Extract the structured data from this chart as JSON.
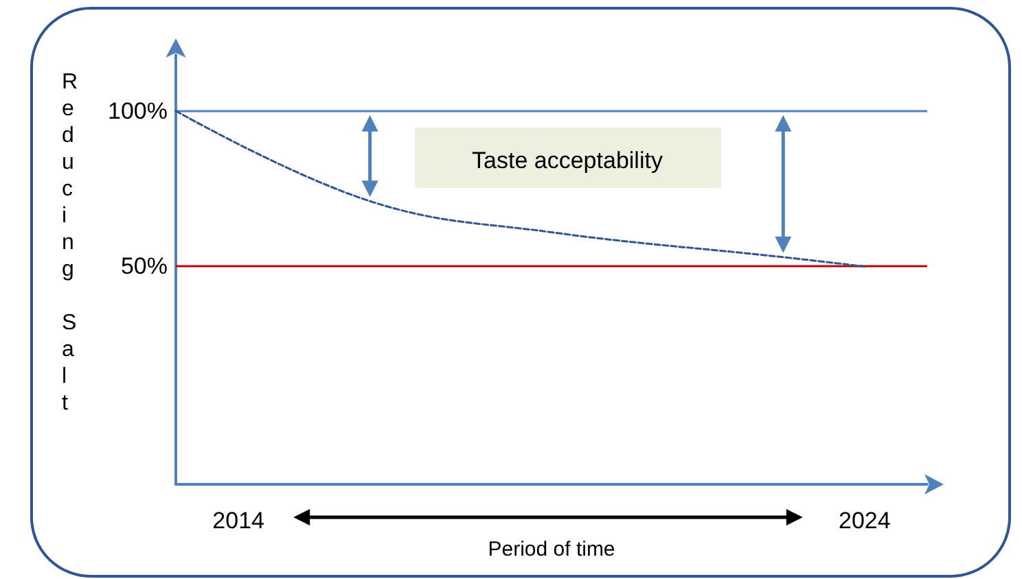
{
  "chart_data": {
    "type": "line",
    "ylabel": "Reducing Salt",
    "xlabel": "Period of time",
    "x": [
      2013,
      2016.1,
      2019,
      2022.7,
      2024
    ],
    "series": [
      {
        "color": "#2f5597",
        "values": [
          100,
          71,
          61,
          53,
          50
        ],
        "line_style": "dashed"
      }
    ],
    "xlim": [
      2013,
      2025
    ],
    "xticks": [
      2014,
      2024
    ],
    "ylim": [
      -20,
      118
    ],
    "yticks": [
      {
        "value": 100,
        "label": "100%"
      },
      {
        "value": 50,
        "label": "50%"
      }
    ],
    "ref_lines": [
      {
        "axis": "y",
        "value": 100,
        "color": "#4f81bd"
      },
      {
        "axis": "y",
        "value": 50,
        "color": "#c00000"
      }
    ],
    "annotations": [
      "Taste acceptability"
    ],
    "grid": false,
    "marker": "none"
  }
}
